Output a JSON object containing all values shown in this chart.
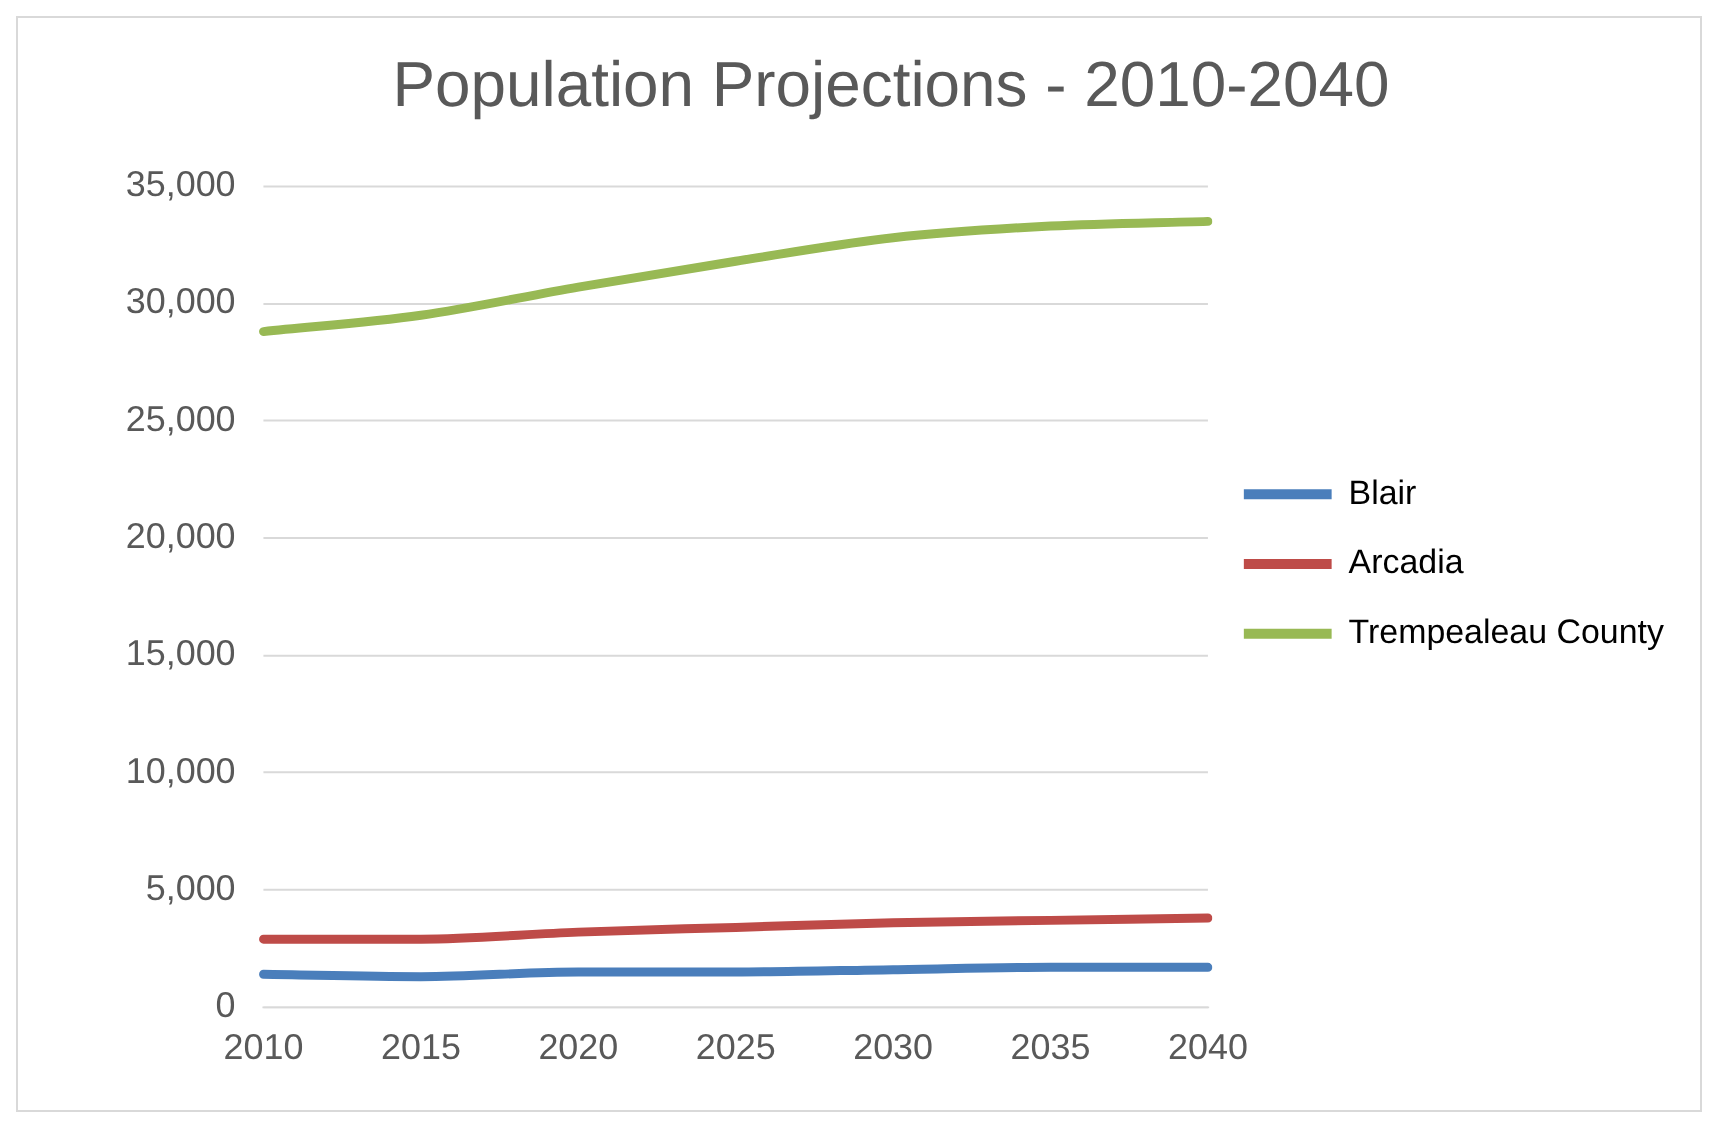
{
  "chart_data": {
    "type": "line",
    "title": "Population Projections - 2010-2040",
    "categories": [
      "2010",
      "2015",
      "2020",
      "2025",
      "2030",
      "2035",
      "2040"
    ],
    "series": [
      {
        "name": "Blair",
        "color": "#4a7ebb",
        "values": [
          1400,
          1300,
          1500,
          1500,
          1600,
          1700,
          1700
        ]
      },
      {
        "name": "Arcadia",
        "color": "#be4b48",
        "values": [
          2900,
          2900,
          3200,
          3400,
          3600,
          3700,
          3800
        ]
      },
      {
        "name": "Trempealeau County",
        "color": "#98b954",
        "values": [
          28800,
          29500,
          30700,
          31800,
          32800,
          33300,
          33500
        ]
      }
    ],
    "ylim": [
      0,
      35000
    ],
    "yticks": [
      0,
      {
        "value": 5000,
        "label": "5,000"
      },
      {
        "value": 10000,
        "label": "10,000"
      },
      {
        "value": 15000,
        "label": "15,000"
      },
      {
        "value": 20000,
        "label": "20,000"
      },
      {
        "value": 25000,
        "label": "25,000"
      },
      {
        "value": 30000,
        "label": "30,000"
      },
      {
        "value": 35000,
        "label": "35,000"
      }
    ],
    "grid": "y",
    "legend": "right",
    "marker": "none",
    "line_style": "solid"
  }
}
